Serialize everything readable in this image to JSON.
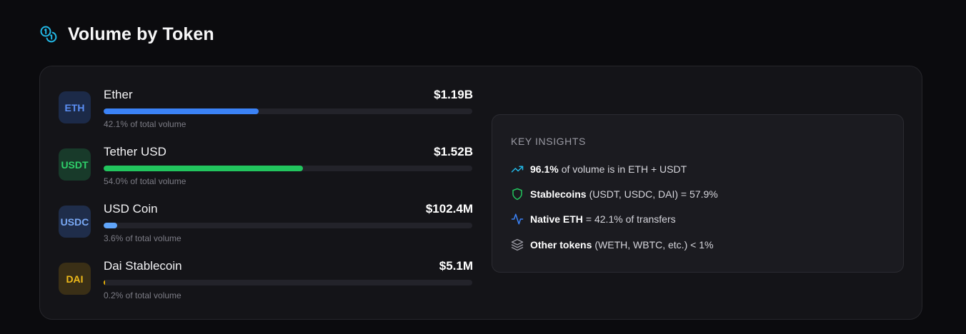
{
  "header": {
    "title": "Volume by Token",
    "icon": "coins-icon",
    "accent": "#22b8e6"
  },
  "tokens": [
    {
      "symbol": "ETH",
      "name": "Ether",
      "amount": "$1.19B",
      "share_text": "42.1% of total volume",
      "share": 0.421,
      "bar_color": "#3b82f6",
      "badge_bg": "#1c2a48",
      "badge_color": "#5b8ff5"
    },
    {
      "symbol": "USDT",
      "name": "Tether USD",
      "amount": "$1.52B",
      "share_text": "54.0% of total volume",
      "share": 0.54,
      "bar_color": "#22c55e",
      "badge_bg": "#183a2a",
      "badge_color": "#2fd06a"
    },
    {
      "symbol": "USDC",
      "name": "USD Coin",
      "amount": "$102.4M",
      "share_text": "3.6% of total volume",
      "share": 0.036,
      "bar_color": "#60a5fa",
      "badge_bg": "#1f2d4a",
      "badge_color": "#7aa9f5"
    },
    {
      "symbol": "DAI",
      "name": "Dai Stablecoin",
      "amount": "$5.1M",
      "share_text": "0.2% of total volume",
      "share": 0.002,
      "bar_color": "#eab308",
      "badge_bg": "#3a2f16",
      "badge_color": "#f0bb1a"
    }
  ],
  "insights": {
    "title": "KEY INSIGHTS",
    "items": [
      {
        "icon": "trending-up-icon",
        "icon_color": "#22b8e6",
        "strong": "96.1%",
        "text": "of volume is in ETH + USDT"
      },
      {
        "icon": "shield-icon",
        "icon_color": "#22c55e",
        "strong": "Stablecoins",
        "text": "(USDT, USDC, DAI) = 57.9%"
      },
      {
        "icon": "activity-icon",
        "icon_color": "#3b82f6",
        "strong": "Native ETH",
        "text": "= 42.1% of transfers"
      },
      {
        "icon": "layers-icon",
        "icon_color": "#9a9aa3",
        "strong": "Other tokens",
        "text": "(WETH, WBTC, etc.) < 1%"
      }
    ]
  }
}
